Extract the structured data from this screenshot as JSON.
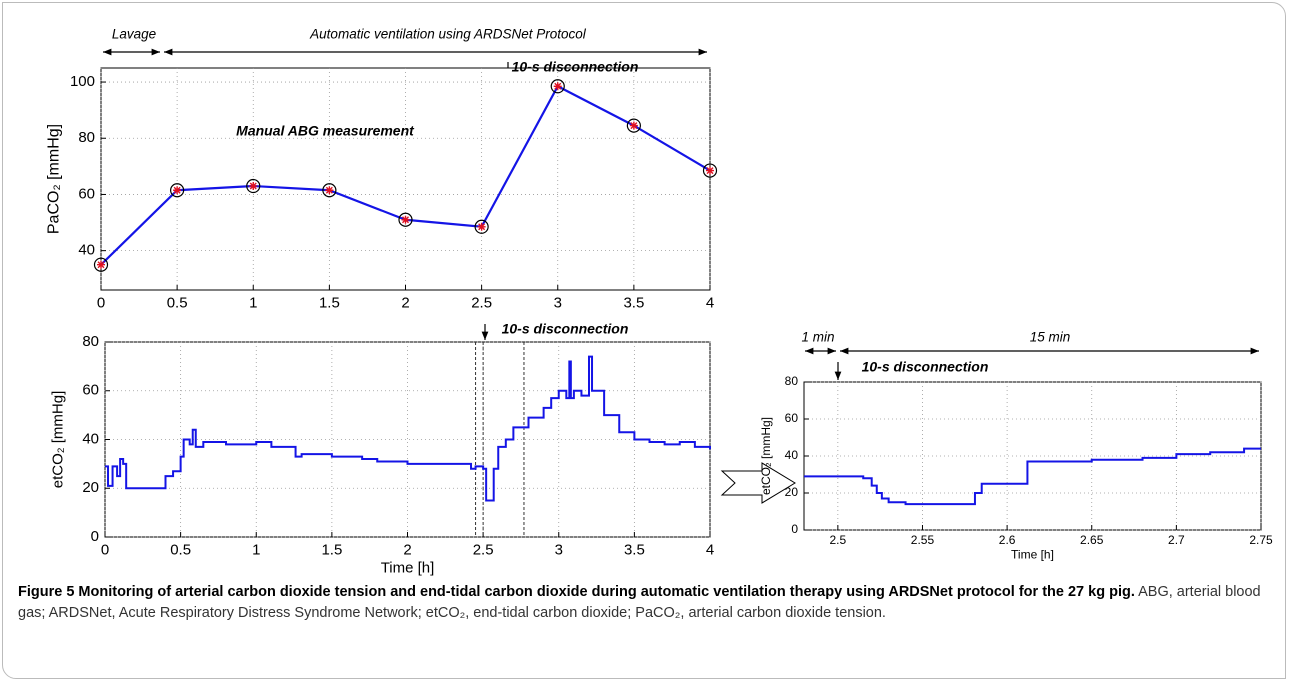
{
  "chart_data": [
    {
      "type": "line",
      "x": [
        0,
        0.5,
        1,
        1.5,
        2,
        2.5,
        3,
        3.5,
        4
      ],
      "values": [
        35,
        61.5,
        63,
        61.5,
        51,
        48.5,
        98.5,
        84.5,
        68.5
      ],
      "color": "#1414e6",
      "markers": true,
      "grid": true,
      "xlim": [
        0,
        4
      ],
      "xticks": [
        0,
        0.5,
        1,
        1.5,
        2,
        2.5,
        3,
        3.5,
        4
      ],
      "ylim": [
        26,
        105
      ],
      "yticks": [
        40,
        60,
        80,
        100
      ],
      "ylabel": "PaCO₂ [mmHg]",
      "annotations": [
        "Lavage",
        "Automatic ventilation using ARDSNet Protocol",
        "10-s disconnection",
        "Manual ABG measurement"
      ]
    },
    {
      "type": "line",
      "step": true,
      "color": "#1414e6",
      "grid": true,
      "x": [
        0,
        0.02,
        0.05,
        0.08,
        0.1,
        0.12,
        0.14,
        0.38,
        0.4,
        0.45,
        0.5,
        0.52,
        0.56,
        0.58,
        0.6,
        0.65,
        0.8,
        1.0,
        1.1,
        1.25,
        1.26,
        1.3,
        1.5,
        1.6,
        1.7,
        1.8,
        2.0,
        2.2,
        2.4,
        2.42,
        2.45,
        2.5,
        2.52,
        2.55,
        2.57,
        2.6,
        2.65,
        2.7,
        2.8,
        2.9,
        2.95,
        3.0,
        3.05,
        3.07,
        3.08,
        3.1,
        3.15,
        3.2,
        3.22,
        3.3,
        3.4,
        3.5,
        3.6,
        3.7,
        3.8,
        3.9,
        4.0
      ],
      "values": [
        29,
        21,
        29,
        25,
        32,
        30,
        20,
        20,
        25,
        27,
        33,
        40,
        38,
        44,
        37,
        39,
        38,
        39,
        37,
        37,
        33,
        34,
        33,
        33,
        32,
        31,
        30,
        30,
        30,
        28,
        29,
        28,
        15,
        15,
        28,
        37,
        40,
        45,
        49,
        53,
        57,
        60,
        57,
        72,
        57,
        60,
        58,
        74,
        60,
        50,
        43,
        40,
        39,
        38,
        39,
        37,
        36
      ],
      "vlines": [
        2.45,
        2.5,
        2.77
      ],
      "xlim": [
        0,
        4
      ],
      "xticks": [
        0,
        0.5,
        1,
        1.5,
        2,
        2.5,
        3,
        3.5,
        4
      ],
      "ylim": [
        0,
        80
      ],
      "yticks": [
        0,
        20,
        40,
        60,
        80
      ],
      "xlabel": "Time [h]",
      "ylabel": "etCO₂ [mmHg]",
      "annotations": [
        "10-s disconnection"
      ]
    },
    {
      "type": "line",
      "step": true,
      "color": "#1414e6",
      "grid": true,
      "x": [
        2.48,
        2.5,
        2.515,
        2.52,
        2.523,
        2.526,
        2.53,
        2.54,
        2.58,
        2.581,
        2.585,
        2.61,
        2.612,
        2.63,
        2.65,
        2.68,
        2.7,
        2.72,
        2.74,
        2.75
      ],
      "values": [
        29,
        29,
        28,
        24,
        20,
        17,
        15,
        14,
        14,
        20,
        25,
        25,
        37,
        37,
        38,
        39,
        41,
        42,
        44,
        44
      ],
      "xlim": [
        2.48,
        2.75
      ],
      "xticks": [
        2.5,
        2.55,
        2.6,
        2.65,
        2.7,
        2.75
      ],
      "ylim": [
        0,
        80
      ],
      "yticks": [
        0,
        20,
        40,
        60,
        80
      ],
      "xlabel": "Time [h]",
      "ylabel": "etCO₂ [mmHg]",
      "annotations": [
        "1 min",
        "15 min",
        "10-s disconnection"
      ]
    }
  ],
  "caption": {
    "title": "Figure 5 Monitoring of arterial carbon dioxide tension and end-tidal carbon dioxide during automatic ventilation therapy using ARDSNet protocol for the 27 kg pig.",
    "text": "ABG, arterial blood gas; ARDSNet, Acute Respiratory Distress Syndrome Network; etCO₂, end-tidal carbon dioxide; PaCO₂, arterial carbon dioxide tension."
  }
}
